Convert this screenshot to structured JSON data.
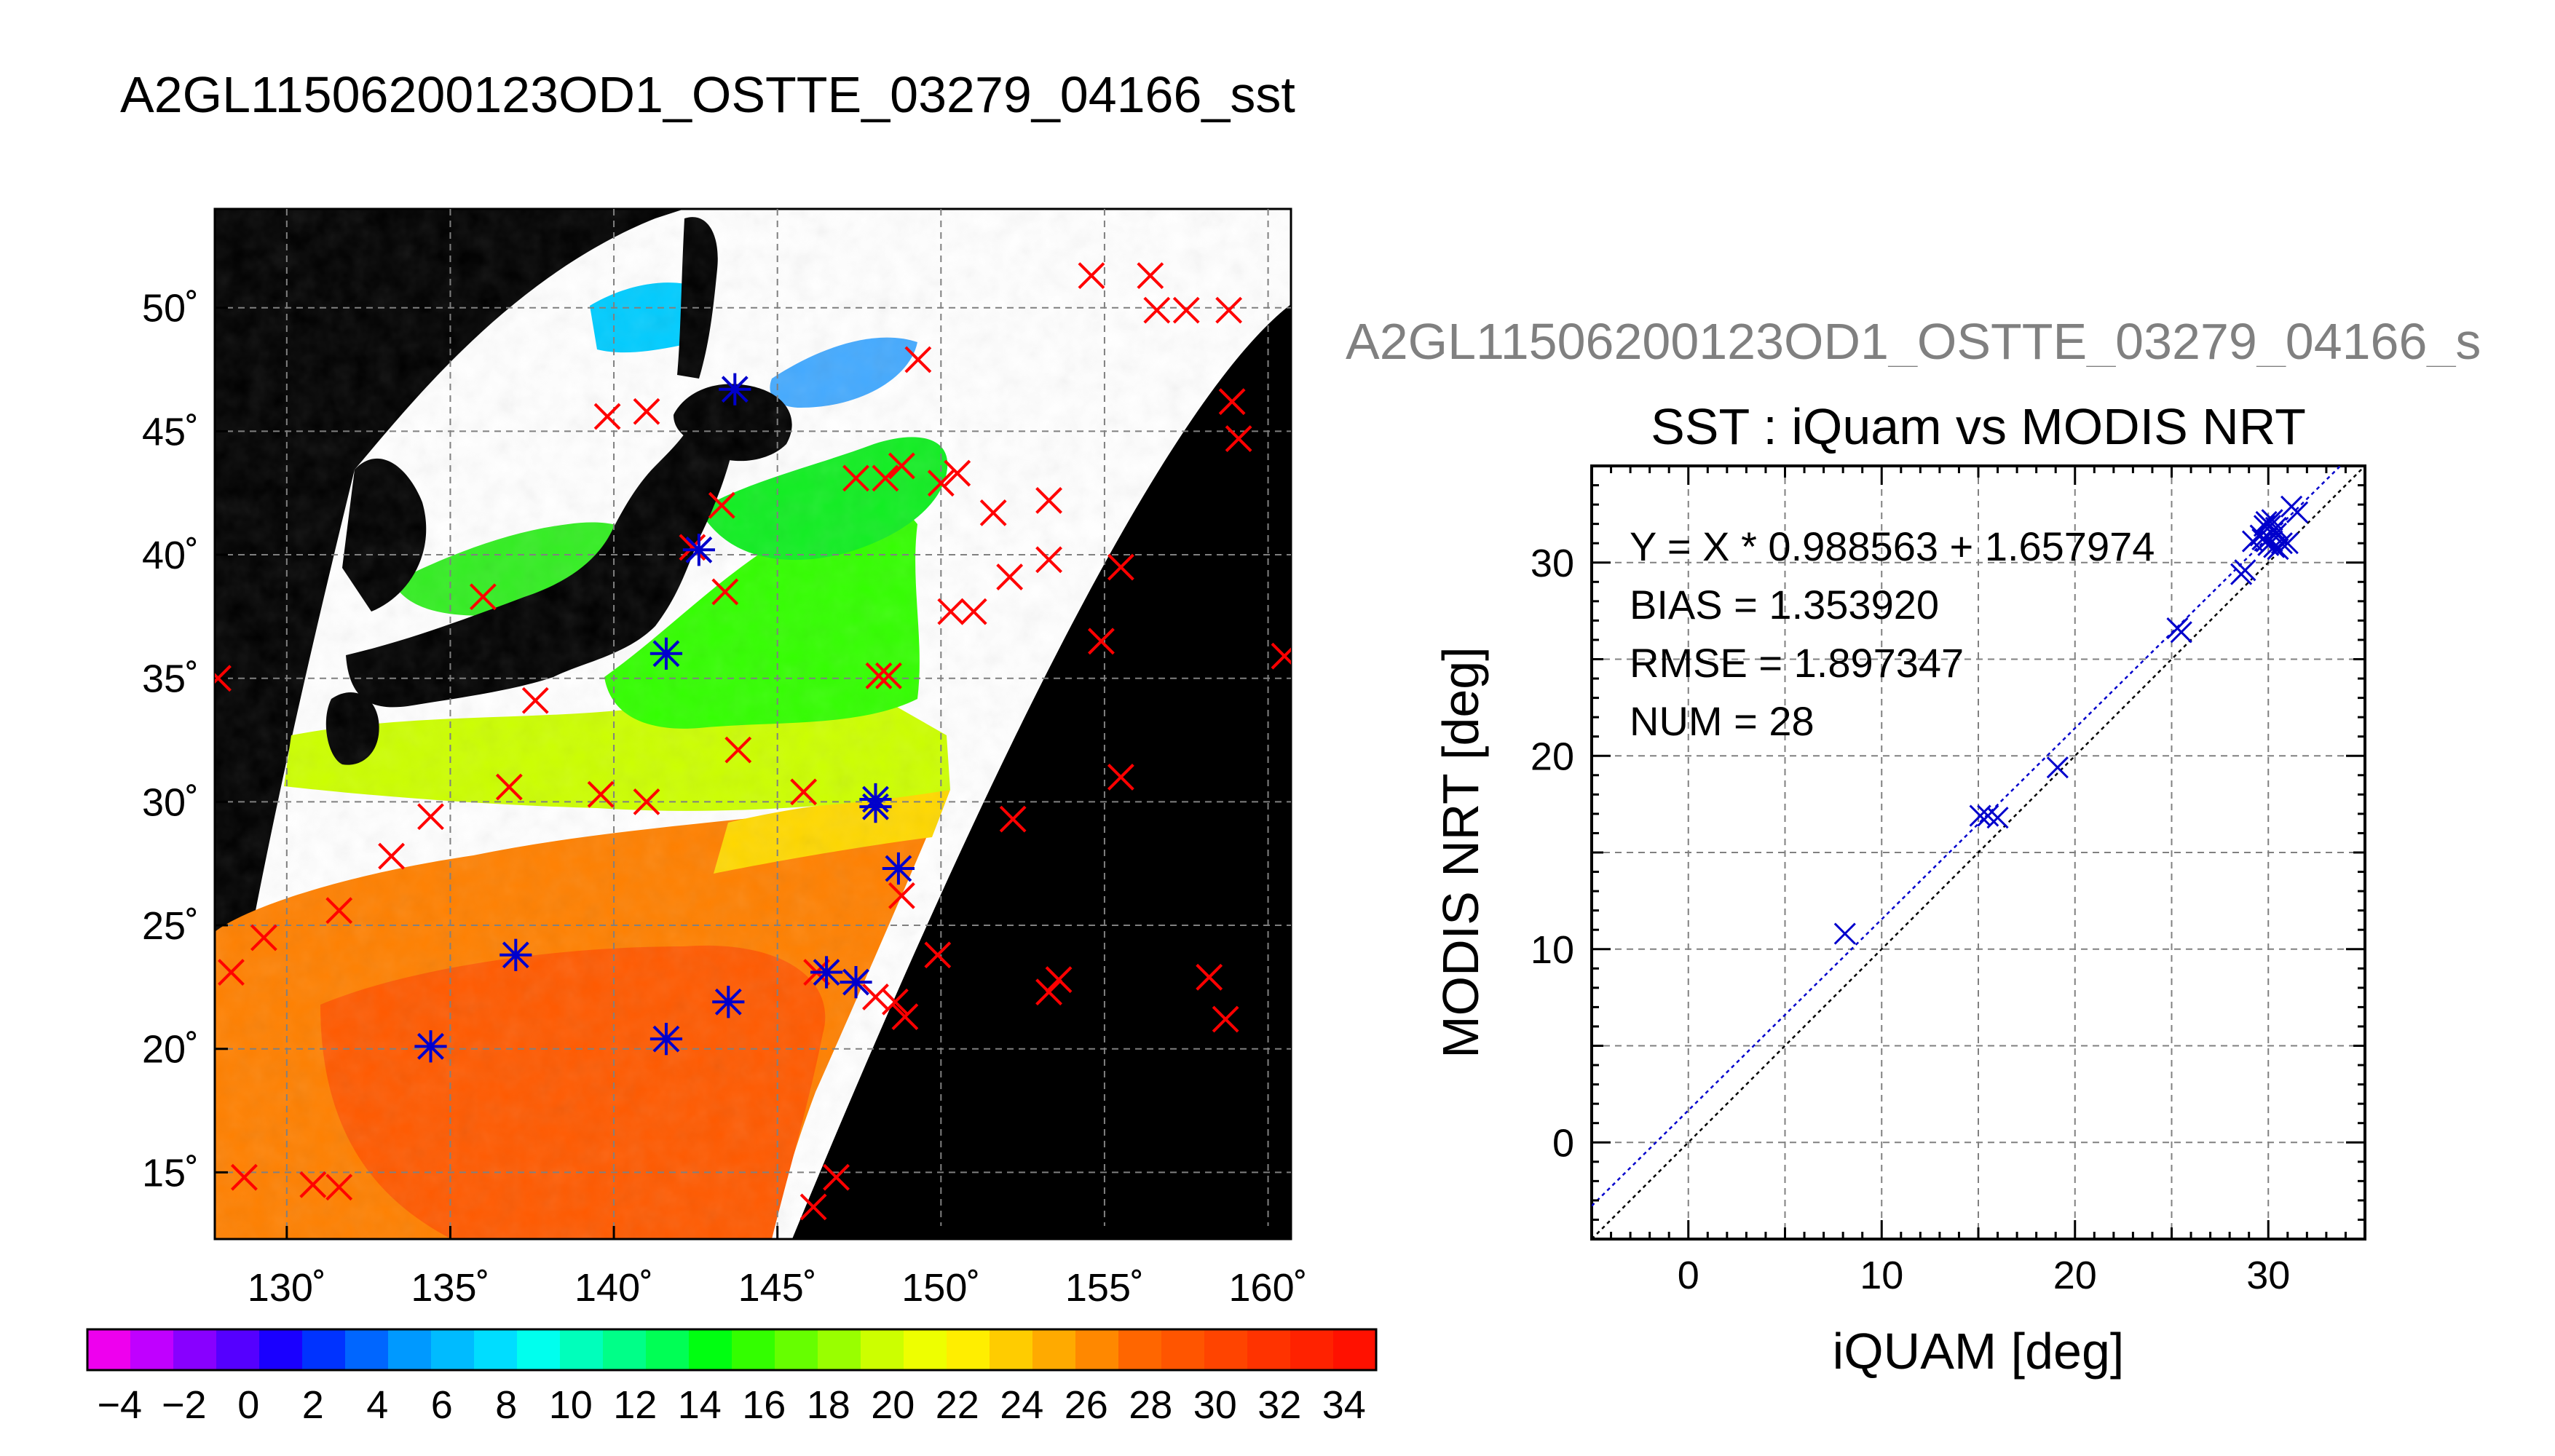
{
  "figure": {
    "title": "A2GL11506200123OD1_OSTTE_03279_04166_sst",
    "scatter_caption": "A2GL11506200123OD1_OSTTE_03279_04166_s"
  },
  "colors": {
    "map_background": "#000000",
    "cloud_mask": "#ffffff",
    "matchup_red": "#ff0000",
    "matchup_blue": "#0000cc",
    "fit_line": "#0000cc",
    "one_to_one_line": "#000000",
    "grid": "#808080"
  },
  "colorbar": {
    "tick_labels": [
      "−4",
      "−2",
      "0",
      "2",
      "4",
      "6",
      "8",
      "10",
      "12",
      "14",
      "16",
      "18",
      "20",
      "22",
      "24",
      "26",
      "28",
      "30",
      "32",
      "34"
    ],
    "colors": [
      "#ee00ee",
      "#c000ff",
      "#8800ff",
      "#5500ff",
      "#1a00ff",
      "#0033ff",
      "#0066ff",
      "#0099ff",
      "#00bbff",
      "#00ddff",
      "#00ffee",
      "#00ffbb",
      "#00ff88",
      "#00ff55",
      "#00ff11",
      "#33ff00",
      "#66ff00",
      "#99ff00",
      "#ccff00",
      "#eeff00",
      "#ffee00",
      "#ffcc00",
      "#ffaa00",
      "#ff8800",
      "#ff6600",
      "#ff5500",
      "#ff4400",
      "#ff3300",
      "#ff2200",
      "#ff1100"
    ]
  },
  "chart_data": [
    {
      "type": "scatter",
      "subtype": "map",
      "x_tick_labels": [
        "130˚",
        "135˚",
        "140˚",
        "145˚",
        "150˚",
        "155˚",
        "160˚"
      ],
      "y_tick_labels": [
        "50˚",
        "45˚",
        "40˚",
        "35˚",
        "30˚",
        "25˚",
        "20˚",
        "15˚"
      ],
      "xlim": [
        127.8,
        160.7
      ],
      "ylim": [
        12.3,
        54.0
      ],
      "grid": true,
      "series": [
        {
          "marker": "x",
          "color": "#ff0000",
          "points": [
            [
              128.3,
              23.1
            ],
            [
              129.3,
              24.5
            ],
            [
              128.7,
              14.8
            ],
            [
              130.8,
              14.5
            ],
            [
              131.6,
              14.4
            ],
            [
              131.6,
              25.6
            ],
            [
              133.2,
              27.8
            ],
            [
              134.4,
              29.4
            ],
            [
              136.0,
              38.3
            ],
            [
              136.8,
              30.6
            ],
            [
              137.6,
              34.1
            ],
            [
              139.6,
              30.3
            ],
            [
              141.0,
              30.0
            ],
            [
              141.0,
              45.8
            ],
            [
              139.8,
              45.6
            ],
            [
              142.4,
              40.3
            ],
            [
              143.3,
              42.0
            ],
            [
              143.4,
              38.5
            ],
            [
              143.8,
              32.1
            ],
            [
              145.8,
              30.4
            ],
            [
              146.1,
              13.6
            ],
            [
              146.8,
              14.8
            ],
            [
              146.2,
              23.1
            ],
            [
              148.0,
              22.1
            ],
            [
              148.6,
              21.9
            ],
            [
              148.9,
              21.3
            ],
            [
              148.1,
              35.1
            ],
            [
              148.4,
              35.1
            ],
            [
              147.4,
              43.1
            ],
            [
              148.3,
              43.1
            ],
            [
              148.8,
              43.6
            ],
            [
              150.0,
              42.9
            ],
            [
              150.5,
              43.3
            ],
            [
              150.3,
              37.7
            ],
            [
              151.0,
              37.7
            ],
            [
              151.6,
              41.7
            ],
            [
              152.1,
              39.1
            ],
            [
              153.3,
              42.2
            ],
            [
              153.3,
              39.8
            ],
            [
              154.9,
              36.5
            ],
            [
              155.5,
              39.5
            ],
            [
              155.5,
              31.0
            ],
            [
              152.2,
              29.3
            ],
            [
              153.3,
              22.3
            ],
            [
              153.6,
              22.8
            ],
            [
              149.3,
              47.9
            ],
            [
              149.9,
              23.8
            ],
            [
              148.8,
              26.2
            ],
            [
              154.6,
              51.3
            ],
            [
              157.5,
              49.9
            ],
            [
              158.8,
              49.9
            ],
            [
              156.4,
              51.3
            ],
            [
              156.6,
              49.9
            ],
            [
              158.2,
              22.9
            ],
            [
              158.7,
              21.2
            ],
            [
              158.9,
              46.2
            ],
            [
              159.1,
              44.7
            ],
            [
              160.5,
              35.9
            ],
            [
              127.9,
              35.0
            ]
          ]
        },
        {
          "marker": "star",
          "color": "#0000cc",
          "points": [
            [
              134.4,
              20.1
            ],
            [
              137.0,
              23.8
            ],
            [
              141.6,
              20.4
            ],
            [
              143.5,
              21.9
            ],
            [
              146.5,
              23.1
            ],
            [
              147.4,
              22.7
            ],
            [
              148.0,
              30.1
            ],
            [
              148.0,
              29.8
            ],
            [
              148.7,
              27.3
            ],
            [
              141.6,
              36.0
            ],
            [
              142.6,
              40.2
            ],
            [
              143.7,
              46.7
            ]
          ]
        }
      ]
    },
    {
      "type": "scatter",
      "title": "SST : iQuam vs MODIS NRT",
      "xlabel": "iQUAM [deg]",
      "ylabel": "MODIS NRT [deg]",
      "xlim": [
        -5,
        35
      ],
      "ylim": [
        -5,
        35
      ],
      "x_ticks": [
        0,
        10,
        20,
        30
      ],
      "y_ticks": [
        0,
        10,
        20,
        30
      ],
      "grid": true,
      "annotations": [
        "Y = X * 0.988563 + 1.657974",
        "BIAS = 1.353920",
        "RMSE = 1.897347",
        "NUM = 28"
      ],
      "fit": {
        "slope": 0.988563,
        "intercept": 1.657974
      },
      "points": [
        [
          8.1,
          10.8
        ],
        [
          15.1,
          16.9
        ],
        [
          15.5,
          16.9
        ],
        [
          16.0,
          16.8
        ],
        [
          19.1,
          19.4
        ],
        [
          25.3,
          26.6
        ],
        [
          25.5,
          26.4
        ],
        [
          28.6,
          29.4
        ],
        [
          28.8,
          29.6
        ],
        [
          29.2,
          31.1
        ],
        [
          29.6,
          31.4
        ],
        [
          29.8,
          31.9
        ],
        [
          29.9,
          32.1
        ],
        [
          30.0,
          30.9
        ],
        [
          30.1,
          31.9
        ],
        [
          30.2,
          32.2
        ],
        [
          30.2,
          31.1
        ],
        [
          30.3,
          30.8
        ],
        [
          30.4,
          31.5
        ],
        [
          30.5,
          30.7
        ],
        [
          30.7,
          31.0
        ],
        [
          31.0,
          31.0
        ],
        [
          31.2,
          32.9
        ],
        [
          31.5,
          32.6
        ],
        [
          30.0,
          32.0
        ],
        [
          29.9,
          31.1
        ],
        [
          30.4,
          31.8
        ],
        [
          29.7,
          31.2
        ]
      ]
    }
  ]
}
